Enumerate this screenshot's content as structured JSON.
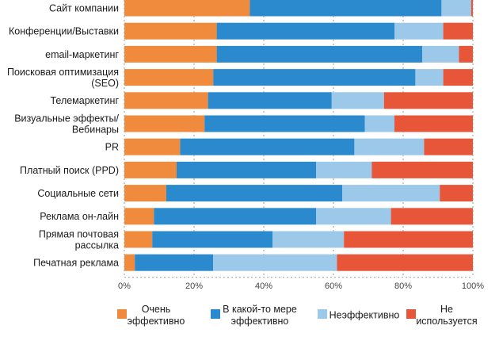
{
  "chart_data": {
    "type": "bar",
    "orientation": "horizontal",
    "stacked": true,
    "title": "",
    "xlabel": "",
    "ylabel": "",
    "xlim": [
      0,
      100
    ],
    "xticks": [
      "0%",
      "20%",
      "40%",
      "60%",
      "80%",
      "100%"
    ],
    "grid": true,
    "legend_position": "bottom",
    "categories": [
      [
        "Сайт компании"
      ],
      [
        "Конференции/Выставки"
      ],
      [
        "email-маркетинг"
      ],
      [
        "Поисковая оптимизация",
        "(SEO)"
      ],
      [
        "Телемаркетинг"
      ],
      [
        "Визуальные эффекты/",
        "Вебинары"
      ],
      [
        "PR"
      ],
      [
        "Платный поиск (PPD)"
      ],
      [
        "Социальные сети"
      ],
      [
        "Реклама он-лайн"
      ],
      [
        "Прямая почтовая",
        "рассылка"
      ],
      [
        "Печатная реклама"
      ]
    ],
    "series": [
      {
        "name": [
          "Очень",
          "эффективно"
        ],
        "color": "#f08a3c",
        "values": [
          36,
          26.5,
          26.5,
          25.5,
          24,
          23,
          16,
          15,
          12,
          8.5,
          8,
          3
        ]
      },
      {
        "name": [
          "В какой-то мере",
          "эффективно"
        ],
        "color": "#2a8acd",
        "values": [
          55,
          51,
          59,
          58,
          35.5,
          46,
          50,
          40,
          50.5,
          46.5,
          34.5,
          22.5
        ]
      },
      {
        "name": [
          "Неэффективно"
        ],
        "color": "#9cc9ea",
        "values": [
          8.5,
          14,
          10.5,
          8,
          15,
          8.5,
          20,
          16,
          28,
          21.5,
          20.5,
          35.5
        ]
      },
      {
        "name": [
          "Не",
          "используется"
        ],
        "color": "#e8563a",
        "values": [
          0.5,
          8.5,
          4,
          8.5,
          25.5,
          22.5,
          14,
          29,
          9.5,
          23.5,
          37,
          39
        ]
      }
    ]
  }
}
